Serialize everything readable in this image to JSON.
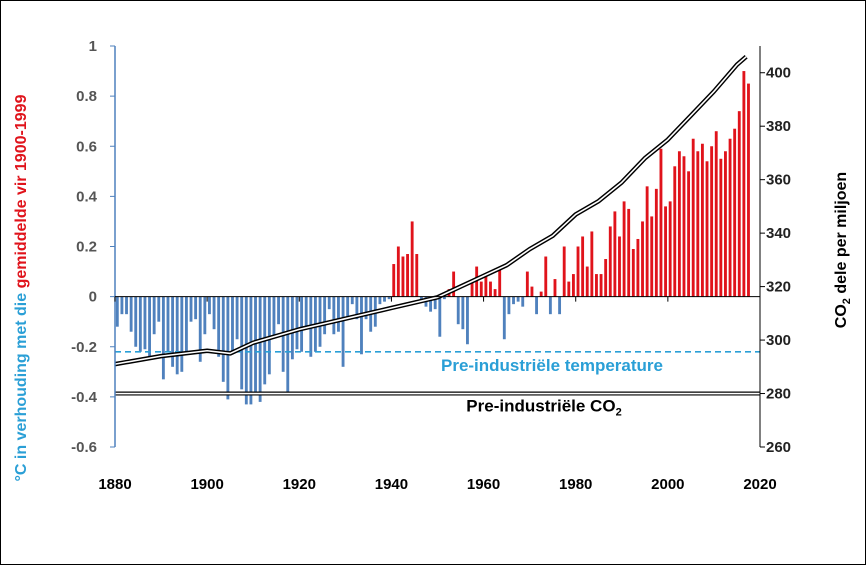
{
  "chart_data": {
    "type": "bar",
    "title": "",
    "x_range": [
      1880,
      2020
    ],
    "x_ticks": [
      "1880",
      "1900",
      "1920",
      "1940",
      "1960",
      "1980",
      "2000",
      "2020"
    ],
    "y_left": {
      "label_part1": "°C in verhouding met die ",
      "label_part2": "gemiddelde vir 1900-1999",
      "range": [
        -0.6,
        1
      ],
      "ticks": [
        "-0.6",
        "-0.4",
        "-0.2",
        "0",
        "0.2",
        "0.4",
        "0.6",
        "0.8",
        "1"
      ]
    },
    "y_right": {
      "label_prefix": "CO",
      "label_sub": "2",
      "label_suffix": " dele per miljoen",
      "range": [
        260,
        410
      ],
      "ticks": [
        "260",
        "280",
        "300",
        "320",
        "340",
        "360",
        "380",
        "400"
      ]
    },
    "temperature_anomaly": {
      "years": [
        1880,
        1881,
        1882,
        1883,
        1884,
        1885,
        1886,
        1887,
        1888,
        1889,
        1890,
        1891,
        1892,
        1893,
        1894,
        1895,
        1896,
        1897,
        1898,
        1899,
        1900,
        1901,
        1902,
        1903,
        1904,
        1905,
        1906,
        1907,
        1908,
        1909,
        1910,
        1911,
        1912,
        1913,
        1914,
        1915,
        1916,
        1917,
        1918,
        1919,
        1920,
        1921,
        1922,
        1923,
        1924,
        1925,
        1926,
        1927,
        1928,
        1929,
        1930,
        1931,
        1932,
        1933,
        1934,
        1935,
        1936,
        1937,
        1938,
        1939,
        1940,
        1941,
        1942,
        1943,
        1944,
        1945,
        1946,
        1947,
        1948,
        1949,
        1950,
        1951,
        1952,
        1953,
        1954,
        1955,
        1956,
        1957,
        1958,
        1959,
        1960,
        1961,
        1962,
        1963,
        1964,
        1965,
        1966,
        1967,
        1968,
        1969,
        1970,
        1971,
        1972,
        1973,
        1974,
        1975,
        1976,
        1977,
        1978,
        1979,
        1980,
        1981,
        1982,
        1983,
        1984,
        1985,
        1986,
        1987,
        1988,
        1989,
        1990,
        1991,
        1992,
        1993,
        1994,
        1995,
        1996,
        1997,
        1998,
        1999,
        2000,
        2001,
        2002,
        2003,
        2004,
        2005,
        2006,
        2007,
        2008,
        2009,
        2010,
        2011,
        2012,
        2013,
        2014,
        2015,
        2016,
        2017
      ],
      "values": [
        -0.12,
        -0.07,
        -0.07,
        -0.14,
        -0.2,
        -0.22,
        -0.21,
        -0.25,
        -0.15,
        -0.1,
        -0.33,
        -0.22,
        -0.28,
        -0.31,
        -0.3,
        -0.22,
        -0.1,
        -0.09,
        -0.26,
        -0.15,
        -0.07,
        -0.13,
        -0.24,
        -0.34,
        -0.41,
        -0.23,
        -0.17,
        -0.37,
        -0.43,
        -0.43,
        -0.39,
        -0.42,
        -0.35,
        -0.31,
        -0.16,
        -0.11,
        -0.3,
        -0.38,
        -0.25,
        -0.21,
        -0.22,
        -0.13,
        -0.24,
        -0.22,
        -0.2,
        -0.15,
        -0.05,
        -0.15,
        -0.14,
        -0.28,
        -0.09,
        -0.03,
        -0.09,
        -0.23,
        -0.09,
        -0.14,
        -0.12,
        -0.03,
        -0.02,
        -0.01,
        0.13,
        0.2,
        0.16,
        0.17,
        0.3,
        0.17,
        -0.01,
        -0.04,
        -0.06,
        -0.05,
        -0.16,
        -0.01,
        0.03,
        0.1,
        -0.11,
        -0.13,
        -0.19,
        0.06,
        0.12,
        0.06,
        0.08,
        0.06,
        0.03,
        0.11,
        -0.17,
        -0.07,
        -0.03,
        -0.02,
        -0.04,
        0.1,
        0.04,
        -0.07,
        0.02,
        0.16,
        -0.07,
        0.07,
        -0.07,
        0.2,
        0.06,
        0.09,
        0.2,
        0.24,
        0.12,
        0.26,
        0.09,
        0.09,
        0.15,
        0.28,
        0.34,
        0.24,
        0.38,
        0.35,
        0.19,
        0.23,
        0.3,
        0.44,
        0.32,
        0.43,
        0.59,
        0.36,
        0.38,
        0.52,
        0.58,
        0.56,
        0.5,
        0.63,
        0.58,
        0.61,
        0.54,
        0.6,
        0.66,
        0.55,
        0.58,
        0.63,
        0.67,
        0.74,
        0.9,
        0.85
      ],
      "positive_color": "#e0131b",
      "negative_color": "#4f81bd"
    },
    "co2_ppm": {
      "x": [
        1880,
        1890,
        1900,
        1905,
        1910,
        1920,
        1930,
        1940,
        1950,
        1955,
        1960,
        1965,
        1970,
        1975,
        1980,
        1985,
        1990,
        1995,
        2000,
        2005,
        2010,
        2015,
        2017
      ],
      "y": [
        291,
        294,
        296,
        295,
        299,
        304,
        308,
        312,
        316,
        320,
        324,
        328,
        334,
        339,
        347,
        352,
        359,
        368,
        375,
        384,
        393,
        403,
        406
      ],
      "color": "#000000"
    },
    "annotations": {
      "pre_temp": {
        "text": "Pre-industriële temperature",
        "value": -0.22,
        "color": "#2a9fd6"
      },
      "pre_co2": {
        "text_prefix": "Pre-industriële CO",
        "text_sub": "2",
        "value": 280,
        "color": "#000000"
      }
    },
    "grid": false,
    "legend": "none"
  }
}
